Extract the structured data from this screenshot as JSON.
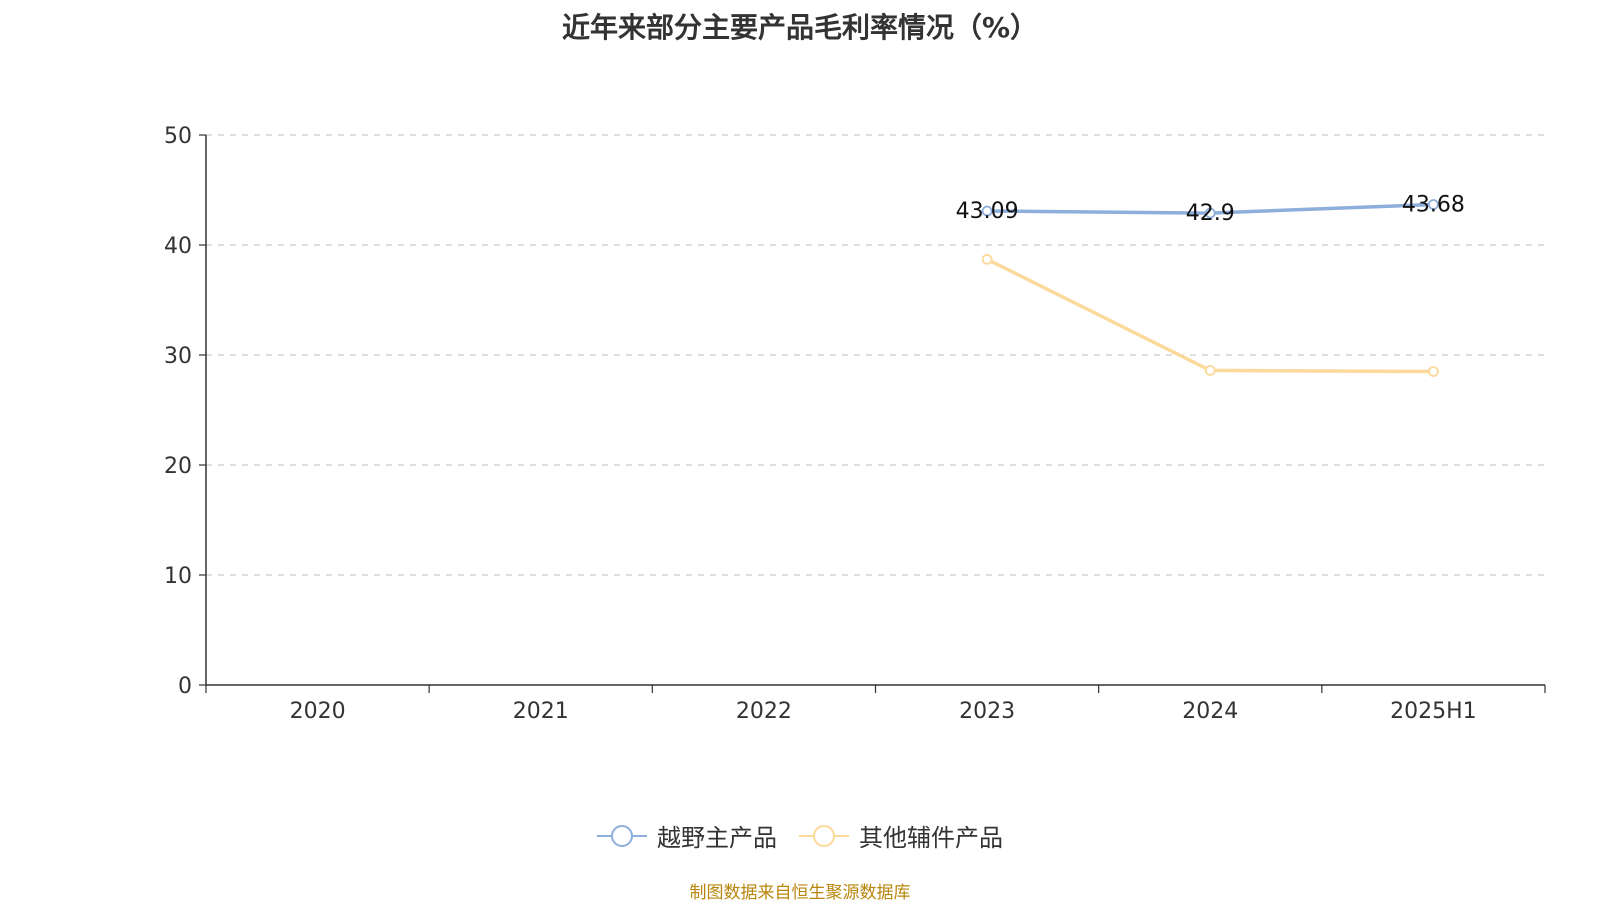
{
  "chart_data": {
    "type": "line",
    "title": "近年来部分主要产品毛利率情况（%）",
    "categories": [
      "2020",
      "2021",
      "2022",
      "2023",
      "2024",
      "2025H1"
    ],
    "ylim": [
      0,
      50
    ],
    "yticks": [
      0,
      10,
      20,
      30,
      40,
      50
    ],
    "grid": true,
    "legend_position": "bottom",
    "series": [
      {
        "name": "越野主产品",
        "color": "#8eaedb",
        "values": [
          null,
          null,
          null,
          43.09,
          42.9,
          43.68
        ],
        "labels": [
          null,
          null,
          null,
          "43.09",
          "42.9",
          "43.68"
        ]
      },
      {
        "name": "其他辅件产品",
        "color": "#fbd99a",
        "values": [
          null,
          null,
          null,
          38.7,
          28.6,
          28.5
        ],
        "labels": [
          null,
          null,
          null,
          null,
          null,
          null
        ]
      }
    ]
  },
  "source": "制图数据来自恒生聚源数据库"
}
